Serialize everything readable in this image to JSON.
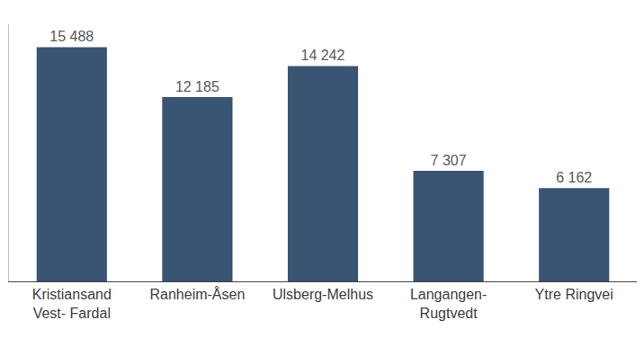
{
  "chart_data": {
    "type": "bar",
    "categories": [
      "Kristiansand\nVest- Fardal",
      "Ranheim-Åsen",
      "Ulsberg-Melhus",
      "Langangen-\nRugtvedt",
      "Ytre Ringvei"
    ],
    "values": [
      15488,
      12185,
      14242,
      7307,
      6162
    ],
    "value_labels": [
      "15 488",
      "12 185",
      "14 242",
      "7 307",
      "6 162"
    ],
    "color": "#3a5573",
    "ylim": [
      0,
      17000
    ],
    "yticks": [],
    "grid": false,
    "data_labels": true,
    "tick_labels": "x"
  }
}
